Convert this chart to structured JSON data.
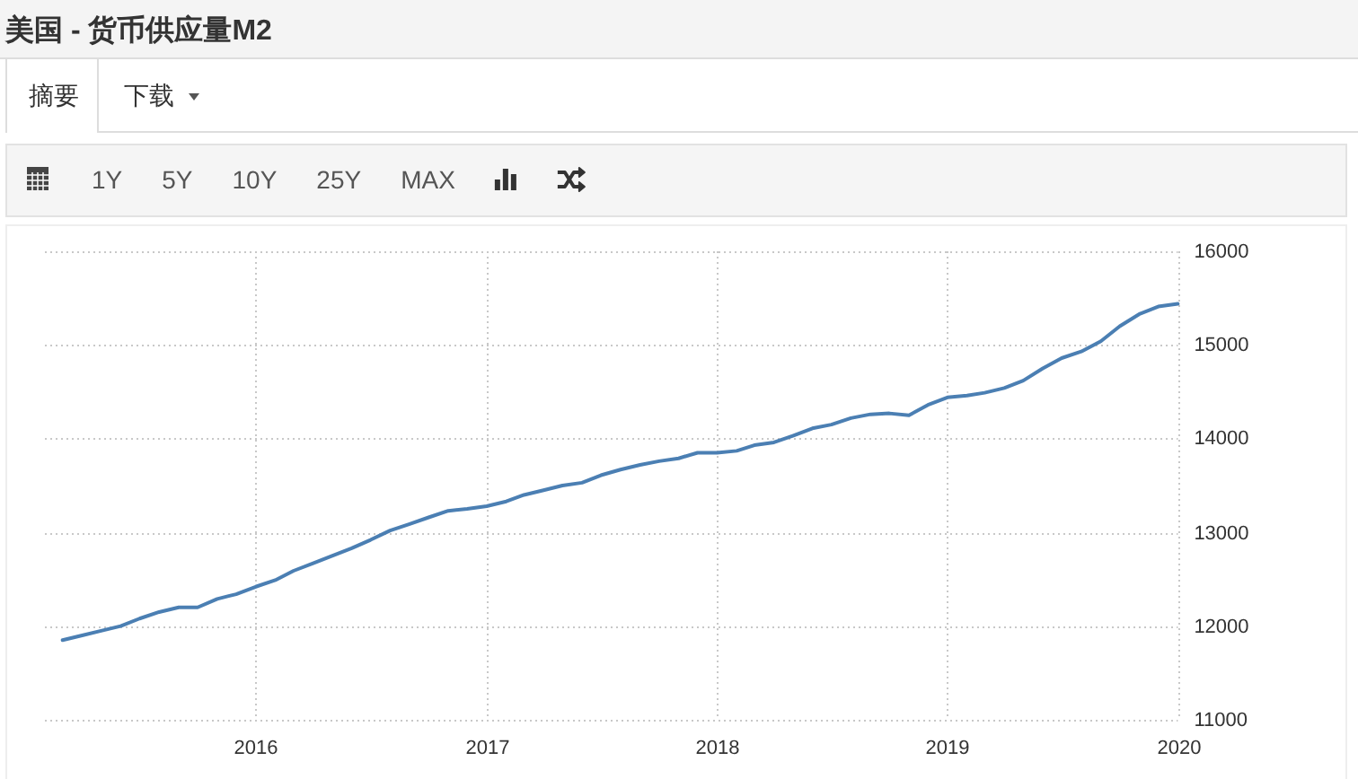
{
  "chart_data": {
    "type": "line",
    "title": "美国 - 货币供应量M2",
    "annotations": [
      "摘要",
      "下载",
      "1Y",
      "5Y",
      "10Y",
      "25Y",
      "MAX"
    ],
    "x": [
      "2015-03",
      "2015-04",
      "2015-05",
      "2015-06",
      "2015-07",
      "2015-08",
      "2015-09",
      "2015-10",
      "2015-11",
      "2015-12",
      "2016-01",
      "2016-02",
      "2016-03",
      "2016-04",
      "2016-05",
      "2016-06",
      "2016-07",
      "2016-08",
      "2016-09",
      "2016-10",
      "2016-11",
      "2016-12",
      "2017-01",
      "2017-02",
      "2017-03",
      "2017-04",
      "2017-05",
      "2017-06",
      "2017-07",
      "2017-08",
      "2017-09",
      "2017-10",
      "2017-11",
      "2017-12",
      "2018-01",
      "2018-02",
      "2018-03",
      "2018-04",
      "2018-05",
      "2018-06",
      "2018-07",
      "2018-08",
      "2018-09",
      "2018-10",
      "2018-11",
      "2018-12",
      "2019-01",
      "2019-02",
      "2019-03",
      "2019-04",
      "2019-05",
      "2019-06",
      "2019-07",
      "2019-08",
      "2019-09",
      "2019-10",
      "2019-11",
      "2019-12",
      "2020-01"
    ],
    "series": [
      {
        "color": "#4b7fb3",
        "values": [
          11850,
          11900,
          11950,
          12000,
          12080,
          12150,
          12200,
          12200,
          12290,
          12340,
          12420,
          12490,
          12590,
          12670,
          12750,
          12830,
          12920,
          13020,
          13090,
          13160,
          13230,
          13250,
          13280,
          13330,
          13400,
          13450,
          13500,
          13530,
          13610,
          13670,
          13720,
          13760,
          13790,
          13850,
          13850,
          13870,
          13930,
          13960,
          14030,
          14110,
          14150,
          14220,
          14260,
          14270,
          14250,
          14360,
          14440,
          14460,
          14490,
          14540,
          14620,
          14750,
          14860,
          14930,
          15040,
          15200,
          15330,
          15410,
          15440
        ]
      }
    ],
    "xlim": [
      "2015-02",
      "2020-01"
    ],
    "xticks": [
      {
        "value": "2016",
        "label": "2016"
      },
      {
        "value": "2017",
        "label": "2017"
      },
      {
        "value": "2018",
        "label": "2018"
      },
      {
        "value": "2019",
        "label": "2019"
      },
      {
        "value": "2020",
        "label": "2020"
      }
    ],
    "ylim": [
      11000,
      16000
    ],
    "yticks": [
      11000,
      12000,
      13000,
      14000,
      15000,
      16000
    ],
    "grid": true
  }
}
